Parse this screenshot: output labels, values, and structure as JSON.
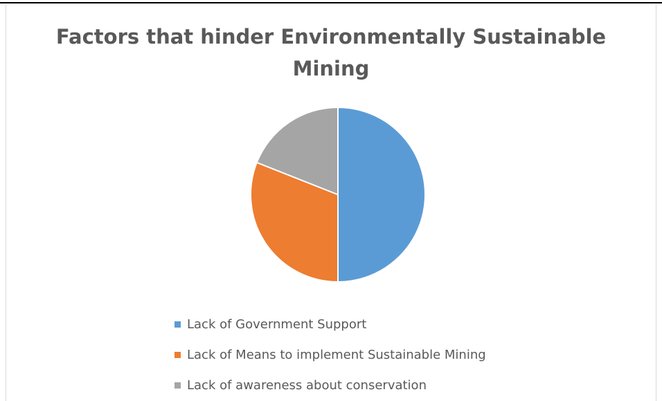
{
  "chart_data": {
    "type": "pie",
    "title": "Factors that hinder Environmentally Sustainable Mining",
    "title_lines": [
      "Factors that hinder Environmentally Sustainable",
      "Mining"
    ],
    "categories": [
      "Lack of Government Support",
      "Lack of Means to implement Sustainable Mining",
      "Lack of awareness about conservation"
    ],
    "values": [
      50,
      31,
      19
    ],
    "colors": [
      "#5b9bd5",
      "#ed7d31",
      "#a5a5a5"
    ],
    "legend_position": "bottom",
    "data_labels": false
  }
}
